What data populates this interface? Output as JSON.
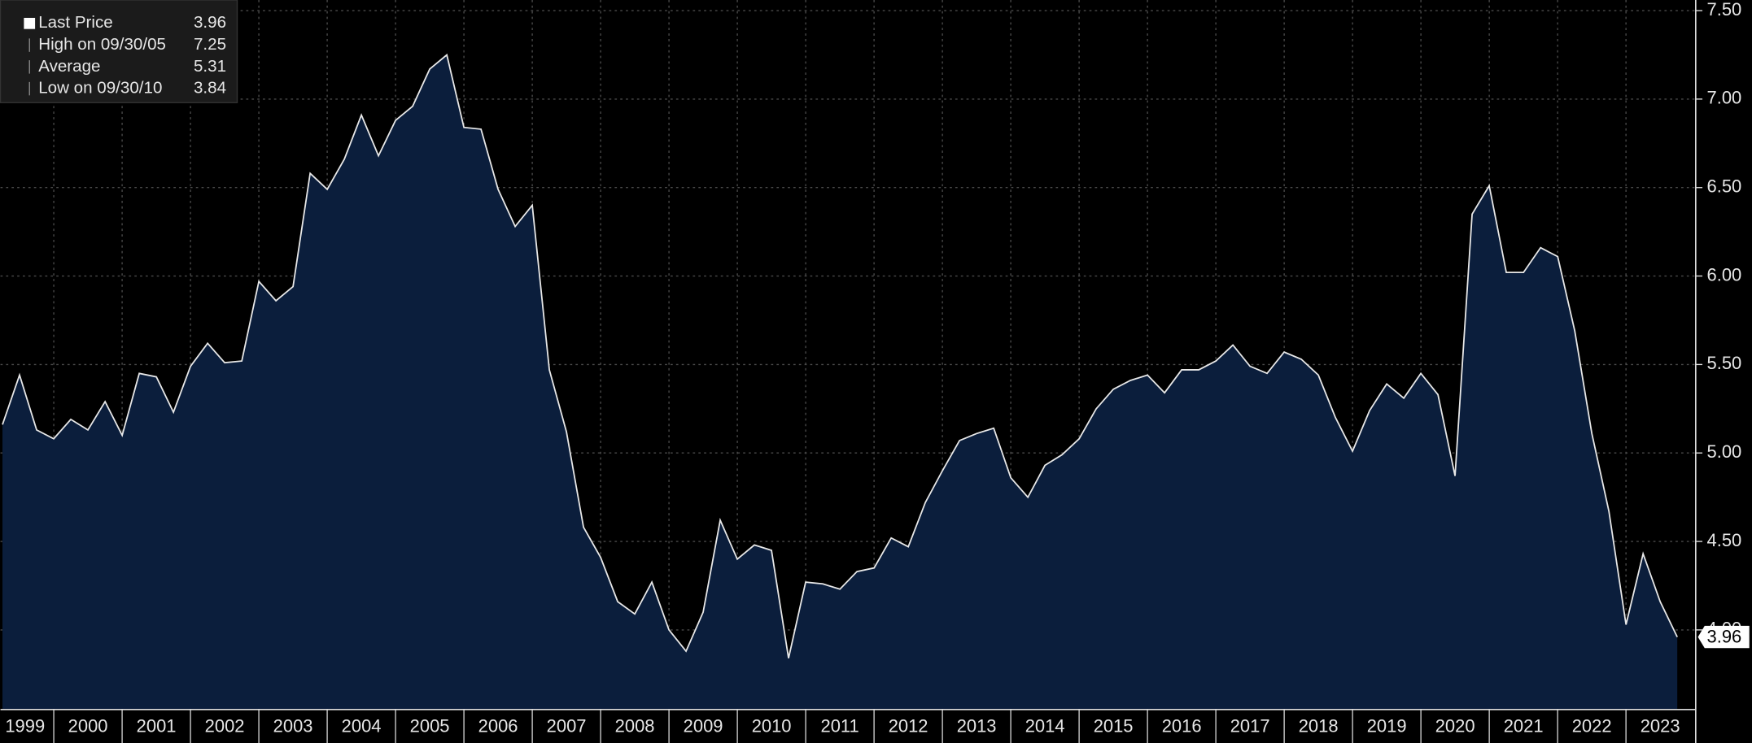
{
  "chart_data": {
    "type": "area",
    "x": [
      1999.25,
      1999.5,
      1999.75,
      2000.0,
      2000.25,
      2000.5,
      2000.75,
      2001.0,
      2001.25,
      2001.5,
      2001.75,
      2002.0,
      2002.25,
      2002.5,
      2002.75,
      2003.0,
      2003.25,
      2003.5,
      2003.75,
      2004.0,
      2004.25,
      2004.5,
      2004.75,
      2005.0,
      2005.25,
      2005.5,
      2005.75,
      2006.0,
      2006.25,
      2006.5,
      2006.75,
      2007.0,
      2007.25,
      2007.5,
      2007.75,
      2008.0,
      2008.25,
      2008.5,
      2008.75,
      2009.0,
      2009.25,
      2009.5,
      2009.75,
      2010.0,
      2010.25,
      2010.5,
      2010.75,
      2011.0,
      2011.25,
      2011.5,
      2011.75,
      2012.0,
      2012.25,
      2012.5,
      2012.75,
      2013.0,
      2013.25,
      2013.5,
      2013.75,
      2014.0,
      2014.25,
      2014.5,
      2014.75,
      2015.0,
      2015.25,
      2015.5,
      2015.75,
      2016.0,
      2016.25,
      2016.5,
      2016.75,
      2017.0,
      2017.25,
      2017.5,
      2017.75,
      2018.0,
      2018.25,
      2018.5,
      2018.75,
      2019.0,
      2019.25,
      2019.5,
      2019.75,
      2020.0,
      2020.25,
      2020.5,
      2020.75,
      2021.0,
      2021.25,
      2021.5,
      2021.75,
      2022.0,
      2022.25,
      2022.5,
      2022.75,
      2023.0,
      2023.25,
      2023.5,
      2023.75
    ],
    "series": [
      {
        "name": "Last Price",
        "color": "#e8e8e8",
        "fill": "#0b1e3c",
        "values": [
          5.16,
          5.44,
          5.13,
          5.08,
          5.19,
          5.13,
          5.29,
          5.1,
          5.45,
          5.43,
          5.23,
          5.49,
          5.62,
          5.51,
          5.52,
          5.97,
          5.86,
          5.94,
          6.58,
          6.49,
          6.66,
          6.91,
          6.68,
          6.88,
          6.96,
          7.17,
          7.25,
          6.84,
          6.83,
          6.49,
          6.28,
          6.4,
          5.47,
          5.12,
          4.58,
          4.41,
          4.16,
          4.09,
          4.27,
          4.0,
          3.88,
          4.1,
          4.62,
          4.4,
          4.48,
          4.45,
          3.84,
          4.27,
          4.26,
          4.23,
          4.33,
          4.35,
          4.52,
          4.47,
          4.72,
          4.9,
          5.07,
          5.11,
          5.14,
          4.86,
          4.75,
          4.93,
          4.99,
          5.08,
          5.25,
          5.36,
          5.41,
          5.44,
          5.34,
          5.47,
          5.47,
          5.52,
          5.61,
          5.49,
          5.45,
          5.57,
          5.53,
          5.44,
          5.2,
          5.01,
          5.24,
          5.39,
          5.31,
          5.45,
          5.33,
          4.87,
          6.35,
          6.51,
          6.02,
          6.02,
          6.16,
          6.11,
          5.69,
          5.11,
          4.67,
          4.03,
          4.43,
          4.16,
          3.96
        ]
      }
    ],
    "stats": [
      {
        "label": "High on 09/30/05",
        "value": 7.25
      },
      {
        "label": "Average",
        "value": 5.31
      },
      {
        "label": "Low on 09/30/10",
        "value": 3.84
      }
    ],
    "xlim": [
      1999.22,
      2024.02
    ],
    "ylim": [
      3.55,
      7.56
    ],
    "xticks": [
      1999,
      2000,
      2001,
      2002,
      2003,
      2004,
      2005,
      2006,
      2007,
      2008,
      2009,
      2010,
      2011,
      2012,
      2013,
      2014,
      2015,
      2016,
      2017,
      2018,
      2019,
      2020,
      2021,
      2022,
      2023
    ],
    "yticks": [
      {
        "value": 4.0,
        "label": "4.00"
      },
      {
        "value": 4.5,
        "label": "4.50"
      },
      {
        "value": 5.0,
        "label": "5.00"
      },
      {
        "value": 5.5,
        "label": "5.50"
      },
      {
        "value": 6.0,
        "label": "6.00"
      },
      {
        "value": 6.5,
        "label": "6.50"
      },
      {
        "value": 7.0,
        "label": "7.00"
      },
      {
        "value": 7.5,
        "label": "7.50"
      }
    ],
    "grid": true,
    "legend_position": "top-left"
  }
}
